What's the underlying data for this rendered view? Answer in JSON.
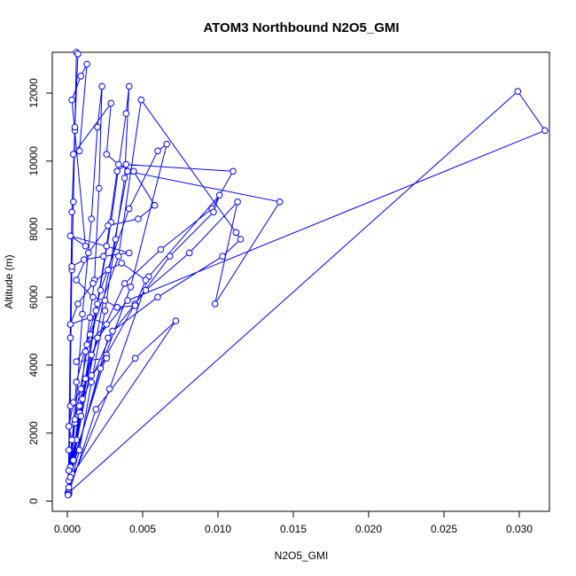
{
  "chart_data": {
    "type": "line",
    "title": "ATOM3 Northbound N2O5_GMI",
    "xlabel": "N2O5_GMI",
    "ylabel": "Altitude (m)",
    "xlim": [
      -0.001,
      0.032
    ],
    "ylim": [
      -300,
      13200
    ],
    "xticks": [
      0.0,
      0.005,
      0.01,
      0.015,
      0.02,
      0.025,
      0.03
    ],
    "xtick_labels": [
      "0.000",
      "0.005",
      "0.010",
      "0.015",
      "0.020",
      "0.025",
      "0.030"
    ],
    "yticks": [
      0,
      2000,
      4000,
      6000,
      8000,
      10000,
      12000
    ],
    "ytick_labels": [
      "0",
      "2000",
      "4000",
      "6000",
      "8000",
      "10000",
      "12000"
    ],
    "grid": false,
    "marker": "open-circle",
    "series": [
      {
        "color": "#0000ff",
        "points": [
          [
            5e-05,
            200
          ],
          [
            0.0001,
            900
          ],
          [
            0.0002,
            2800
          ],
          [
            0.0002,
            4800
          ],
          [
            0.0003,
            6800
          ],
          [
            0.0004,
            8800
          ],
          [
            0.0005,
            10900
          ],
          [
            0.0006,
            13200
          ],
          [
            0.0007,
            13150
          ],
          [
            0.0005,
            11000
          ],
          [
            0.0003,
            8500
          ],
          [
            0.0002,
            5200
          ],
          [
            0.0001,
            1500
          ],
          [
            5e-05,
            250
          ],
          [
            0.0003,
            800
          ],
          [
            0.0008,
            2600
          ],
          [
            0.0012,
            4400
          ],
          [
            0.0018,
            6500
          ],
          [
            0.0021,
            9200
          ],
          [
            0.0023,
            12200
          ],
          [
            0.002,
            11000
          ],
          [
            0.0016,
            8300
          ],
          [
            0.001,
            5500
          ],
          [
            0.0005,
            2300
          ],
          [
            0.0001,
            300
          ],
          [
            0.0008,
            1500
          ],
          [
            0.0016,
            3500
          ],
          [
            0.0025,
            5600
          ],
          [
            0.0032,
            7700
          ],
          [
            0.0038,
            9500
          ],
          [
            0.0041,
            12200
          ],
          [
            0.0039,
            11400
          ],
          [
            0.0029,
            8200
          ],
          [
            0.002,
            5800
          ],
          [
            0.0009,
            2500
          ],
          [
            0.0001,
            250
          ],
          [
            0.0006,
            1800
          ],
          [
            0.0012,
            3600
          ],
          [
            0.0019,
            5600
          ],
          [
            0.0026,
            7500
          ],
          [
            0.0033,
            9700
          ],
          [
            0.0039,
            9900
          ],
          [
            0.011,
            9700
          ],
          [
            0.0096,
            8600
          ],
          [
            0.0062,
            7400
          ],
          [
            0.0038,
            6400
          ],
          [
            0.0016,
            4300
          ],
          [
            0.0002,
            1000
          ],
          [
            0.0005,
            2400
          ],
          [
            0.0015,
            4900
          ],
          [
            0.0034,
            7200
          ],
          [
            0.0049,
            11800
          ],
          [
            0.0112,
            7900
          ],
          [
            0.0115,
            7700
          ],
          [
            0.0103,
            7200
          ],
          [
            0.006,
            6000
          ],
          [
            0.003,
            5000
          ],
          [
            0.001,
            3000
          ],
          [
            0.0001,
            600
          ],
          [
            0.0022,
            3900
          ],
          [
            0.0042,
            6300
          ],
          [
            0.0066,
            10500
          ],
          [
            0.006,
            10300
          ],
          [
            0.0041,
            8600
          ],
          [
            0.0022,
            6200
          ],
          [
            0.0006,
            3500
          ],
          [
            0.0001,
            400
          ],
          [
            0.0028,
            3300
          ],
          [
            0.0054,
            6600
          ],
          [
            0.0101,
            9000
          ],
          [
            0.0097,
            8500
          ],
          [
            0.0068,
            7200
          ],
          [
            0.0045,
            5800
          ],
          [
            0.0026,
            4300
          ],
          [
            0.0004,
            1200
          ],
          [
            0.004,
            9700
          ],
          [
            0.0141,
            8800
          ],
          [
            0.0098,
            5800
          ],
          [
            0.0113,
            8800
          ],
          [
            0.0081,
            7300
          ],
          [
            0.0052,
            6200
          ],
          [
            0.0027,
            4800
          ],
          [
            0.0002,
            700
          ],
          [
            0.0072,
            5300
          ],
          [
            0.0045,
            4200
          ],
          [
            0.0019,
            2700
          ],
          [
            0.0001,
            250
          ],
          [
            0.0299,
            12050
          ],
          [
            0.0317,
            10900
          ],
          [
            0.004,
            5900
          ],
          [
            0.002,
            4800
          ],
          [
            0.0008,
            2800
          ],
          [
            0.0001,
            200
          ],
          [
            0.0003,
            6900
          ],
          [
            0.0011,
            7100
          ],
          [
            0.0024,
            7200
          ],
          [
            0.0041,
            7300
          ],
          [
            0.0002,
            7800
          ],
          [
            0.0012,
            7500
          ],
          [
            0.0003,
            11800
          ],
          [
            0.0009,
            12500
          ],
          [
            0.0013,
            12850
          ],
          [
            0.0008,
            10300
          ],
          [
            0.0004,
            10200
          ],
          [
            0.0029,
            11700
          ],
          [
            0.0026,
            10200
          ],
          [
            0.0034,
            9900
          ],
          [
            0.0044,
            9700
          ],
          [
            0.0058,
            8700
          ],
          [
            0.0047,
            8300
          ],
          [
            0.0027,
            8100
          ],
          [
            0.0014,
            7300
          ],
          [
            0.0006,
            6500
          ],
          [
            0.0017,
            6000
          ],
          [
            0.0025,
            5900
          ],
          [
            0.0033,
            5700
          ],
          [
            0.0045,
            5750
          ],
          [
            0.0052,
            6500
          ],
          [
            0.0036,
            7000
          ],
          [
            0.0027,
            6800
          ],
          [
            0.0017,
            6400
          ],
          [
            0.0007,
            5800
          ],
          [
            0.0002,
            5200
          ],
          [
            0.0015,
            5400
          ],
          [
            0.0026,
            5200
          ],
          [
            0.0013,
            4600
          ],
          [
            0.0006,
            4100
          ],
          [
            0.0026,
            4200
          ],
          [
            0.0016,
            3700
          ],
          [
            0.0009,
            3300
          ],
          [
            0.0004,
            2900
          ],
          [
            0.0001,
            2200
          ],
          [
            0.0003,
            1800
          ],
          [
            0.0001,
            900
          ],
          [
            5e-05,
            180
          ]
        ]
      }
    ]
  }
}
